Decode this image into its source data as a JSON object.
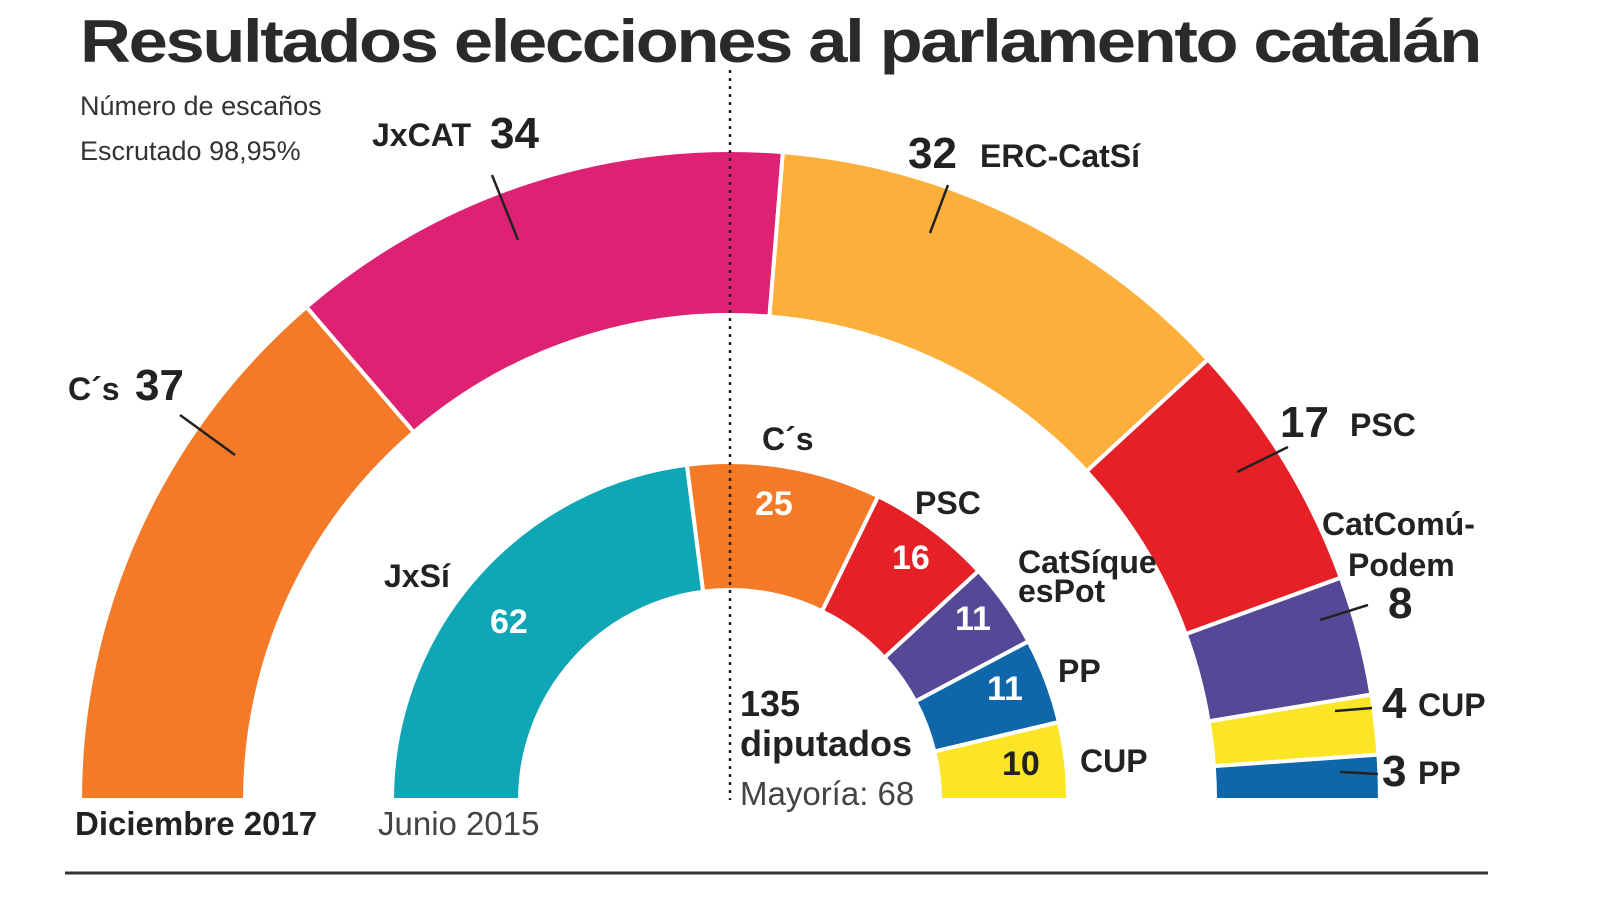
{
  "title": "Resultados elecciones al parlamento catalán",
  "subtitle": "Número de escaños",
  "scrutiny": "Escrutado 98,95%",
  "total_seats": "135",
  "total_label": "diputados",
  "majority": "Mayoría: 68",
  "chart_data": [
    {
      "type": "pie",
      "style": "hemicycle",
      "period": "Diciembre 2017",
      "total": 135,
      "series": [
        {
          "name": "C´s",
          "value": 37,
          "color": "#f47a27"
        },
        {
          "name": "JxCAT",
          "value": 34,
          "color": "#dd2274"
        },
        {
          "name": "ERC-CatSí",
          "value": 32,
          "color": "#fcb03b"
        },
        {
          "name": "PSC",
          "value": 17,
          "color": "#e52127"
        },
        {
          "name": "CatComú-Podem",
          "value": 8,
          "color": "#574897"
        },
        {
          "name": "CUP",
          "value": 4,
          "color": "#fce527"
        },
        {
          "name": "PP",
          "value": 3,
          "color": "#0f67a9"
        }
      ]
    },
    {
      "type": "pie",
      "style": "hemicycle",
      "period": "Junio 2015",
      "total": 135,
      "series": [
        {
          "name": "JxSí",
          "value": 62,
          "color": "#0fa6b6"
        },
        {
          "name": "C´s",
          "value": 25,
          "color": "#f47a27"
        },
        {
          "name": "PSC",
          "value": 16,
          "color": "#e52127"
        },
        {
          "name": "CatSíqueesPot",
          "value": 11,
          "color": "#574897"
        },
        {
          "name": "PP",
          "value": 11,
          "color": "#0f67a9"
        },
        {
          "name": "CUP",
          "value": 10,
          "color": "#fce527"
        }
      ]
    }
  ],
  "labels": {
    "outer": [
      {
        "name": "C´s",
        "seats": "37"
      },
      {
        "name": "JxCAT",
        "seats": "34"
      },
      {
        "name": "ERC-CatSí",
        "seats": "32"
      },
      {
        "name": "PSC",
        "seats": "17"
      },
      {
        "name": "CatComú-",
        "name2": "Podem",
        "seats": "8"
      },
      {
        "name": "CUP",
        "seats": "4"
      },
      {
        "name": "PP",
        "seats": "3"
      }
    ],
    "inner": [
      {
        "name": "JxSí",
        "seats": "62"
      },
      {
        "name": "C´s",
        "seats": "25"
      },
      {
        "name": "PSC",
        "seats": "16"
      },
      {
        "name": "CatSíque",
        "name2": "esPot",
        "seats": "11"
      },
      {
        "name": "PP",
        "seats": "11"
      },
      {
        "name": "CUP",
        "seats": "10"
      }
    ]
  }
}
